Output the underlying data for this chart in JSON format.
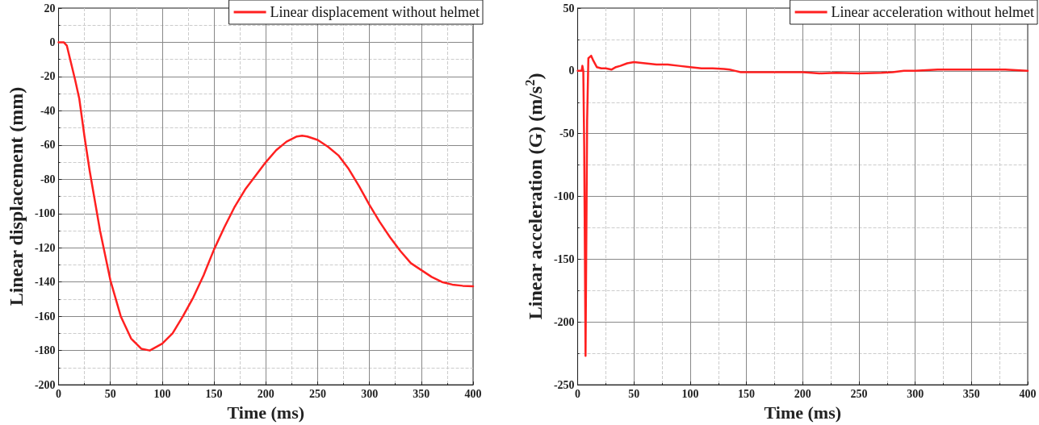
{
  "chart_data": [
    {
      "type": "line",
      "xlabel": "Time (ms)",
      "ylabel": "Linear displacement (mm)",
      "xlim": [
        0,
        400
      ],
      "xticks": [
        0,
        50,
        100,
        150,
        200,
        250,
        300,
        350,
        400
      ],
      "ylim": [
        -200,
        20
      ],
      "yticks": [
        -200,
        -180,
        -160,
        -140,
        -120,
        -100,
        -80,
        -60,
        -40,
        -20,
        0,
        20
      ],
      "grid": true,
      "legend": "top right",
      "marker": "none",
      "line_style": "solid",
      "series": [
        {
          "name": "Linear displacement without helmet",
          "color": "#ff2020",
          "x": [
            0,
            5,
            8,
            12,
            16,
            20,
            25,
            30,
            40,
            50,
            60,
            70,
            80,
            88,
            100,
            110,
            120,
            130,
            140,
            150,
            160,
            170,
            180,
            190,
            200,
            210,
            220,
            230,
            235,
            240,
            250,
            260,
            270,
            280,
            290,
            300,
            310,
            320,
            330,
            340,
            350,
            360,
            370,
            380,
            390,
            400
          ],
          "values": [
            0,
            0,
            -2,
            -12,
            -22,
            -33,
            -55,
            -75,
            -110,
            -139,
            -160,
            -173,
            -179,
            -180,
            -176,
            -170,
            -160,
            -149,
            -136,
            -121,
            -108,
            -96,
            -86,
            -78,
            -70,
            -63,
            -58,
            -55,
            -54.5,
            -55,
            -57,
            -61,
            -66,
            -74,
            -84,
            -95,
            -105,
            -114,
            -122,
            -129,
            -133,
            -137,
            -140,
            -141.5,
            -142.2,
            -142.5
          ]
        }
      ]
    },
    {
      "type": "line",
      "xlabel": "Time (ms)",
      "ylabel": "Linear acceleration (G) (m/s$^{2}$)",
      "xlim": [
        0,
        400
      ],
      "xticks": [
        0,
        50,
        100,
        150,
        200,
        250,
        300,
        350,
        400
      ],
      "ylim": [
        -250,
        50
      ],
      "yticks": [
        -250,
        -200,
        -150,
        -100,
        -50,
        0,
        50
      ],
      "grid": true,
      "legend": "top right",
      "marker": "none",
      "line_style": "solid",
      "series": [
        {
          "name": "Linear acceleration without helmet",
          "color": "#ff2020",
          "x": [
            0,
            3.5,
            4.2,
            5,
            5.8,
            7,
            8.4,
            9.5,
            12,
            14,
            17,
            21,
            25,
            30,
            34,
            38,
            44,
            50,
            60,
            70,
            80,
            90,
            100,
            110,
            120,
            130,
            135,
            140,
            145,
            160,
            180,
            200,
            215,
            230,
            250,
            270,
            280,
            290,
            300,
            320,
            350,
            380,
            400
          ],
          "values": [
            0,
            0,
            4,
            0,
            -60,
            -227,
            -40,
            10,
            12,
            8,
            3,
            2,
            2,
            1,
            3,
            4,
            6,
            7,
            6,
            5,
            5,
            4,
            3,
            2,
            2,
            1.5,
            1,
            0,
            -1,
            -1,
            -1,
            -1,
            -2,
            -1.5,
            -2,
            -1.5,
            -1,
            0,
            0,
            1,
            1,
            1,
            0
          ]
        }
      ]
    }
  ]
}
